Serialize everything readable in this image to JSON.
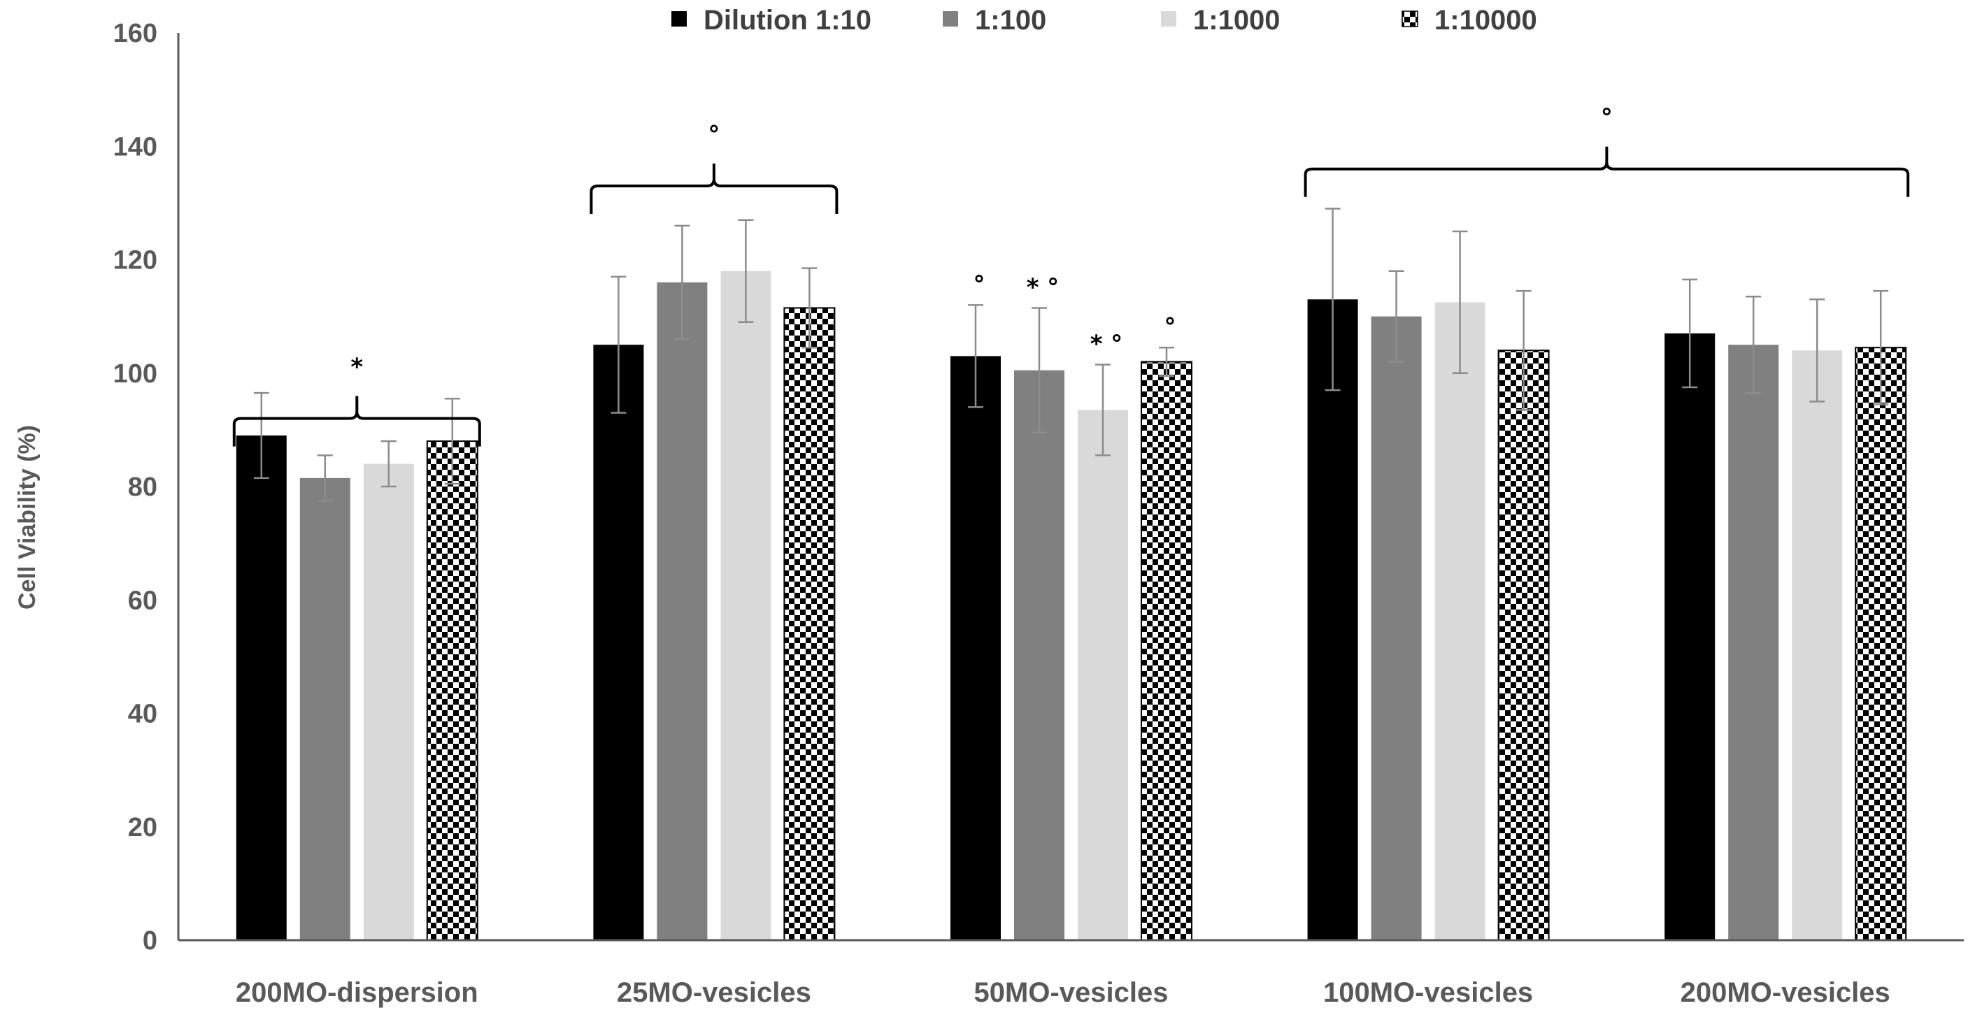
{
  "chart_data": {
    "type": "bar",
    "title": "",
    "xlabel": "",
    "ylabel": "Cell Viability (%)",
    "ylim": [
      0,
      160
    ],
    "yticks": [
      0,
      20,
      40,
      60,
      80,
      100,
      120,
      140,
      160
    ],
    "grid": false,
    "legend_position": "top",
    "categories": [
      "200MO-dispersion",
      "25MO-vesicles",
      "50MO-vesicles",
      "100MO-vesicles",
      "200MO-vesicles"
    ],
    "series": [
      {
        "name": "Dilution 1:10",
        "color": "#000000",
        "pattern": "solid",
        "values": [
          89,
          105,
          103,
          113,
          107
        ],
        "errors": [
          7.5,
          12,
          9,
          16,
          9.5
        ]
      },
      {
        "name": "1:100",
        "color": "#808080",
        "pattern": "solid",
        "values": [
          81.5,
          116,
          100.5,
          110,
          105
        ],
        "errors": [
          4,
          10,
          11,
          8,
          8.5
        ]
      },
      {
        "name": "1:1000",
        "color": "#d9d9d9",
        "pattern": "solid",
        "values": [
          84,
          118,
          93.5,
          112.5,
          104
        ],
        "errors": [
          4,
          9,
          8,
          12.5,
          9
        ]
      },
      {
        "name": "1:10000",
        "color": "#000000",
        "pattern": "checker",
        "values": [
          88,
          111.5,
          102,
          104,
          104.5
        ],
        "errors": [
          7.5,
          7,
          2.5,
          10.5,
          10
        ]
      }
    ],
    "annotations": {
      "brackets": [
        {
          "from_category": 0,
          "to_category": 0,
          "y": 92,
          "mark": "*"
        },
        {
          "from_category": 1,
          "to_category": 1,
          "y": 133,
          "mark": "°"
        },
        {
          "from_category": 3,
          "to_category": 4,
          "y": 136,
          "mark": "°"
        }
      ],
      "bar_marks": [
        {
          "category": 2,
          "series": 0,
          "text": "°"
        },
        {
          "category": 2,
          "series": 1,
          "text": "* °"
        },
        {
          "category": 2,
          "series": 2,
          "text": "* °"
        },
        {
          "category": 2,
          "series": 3,
          "text": "°"
        }
      ]
    }
  }
}
